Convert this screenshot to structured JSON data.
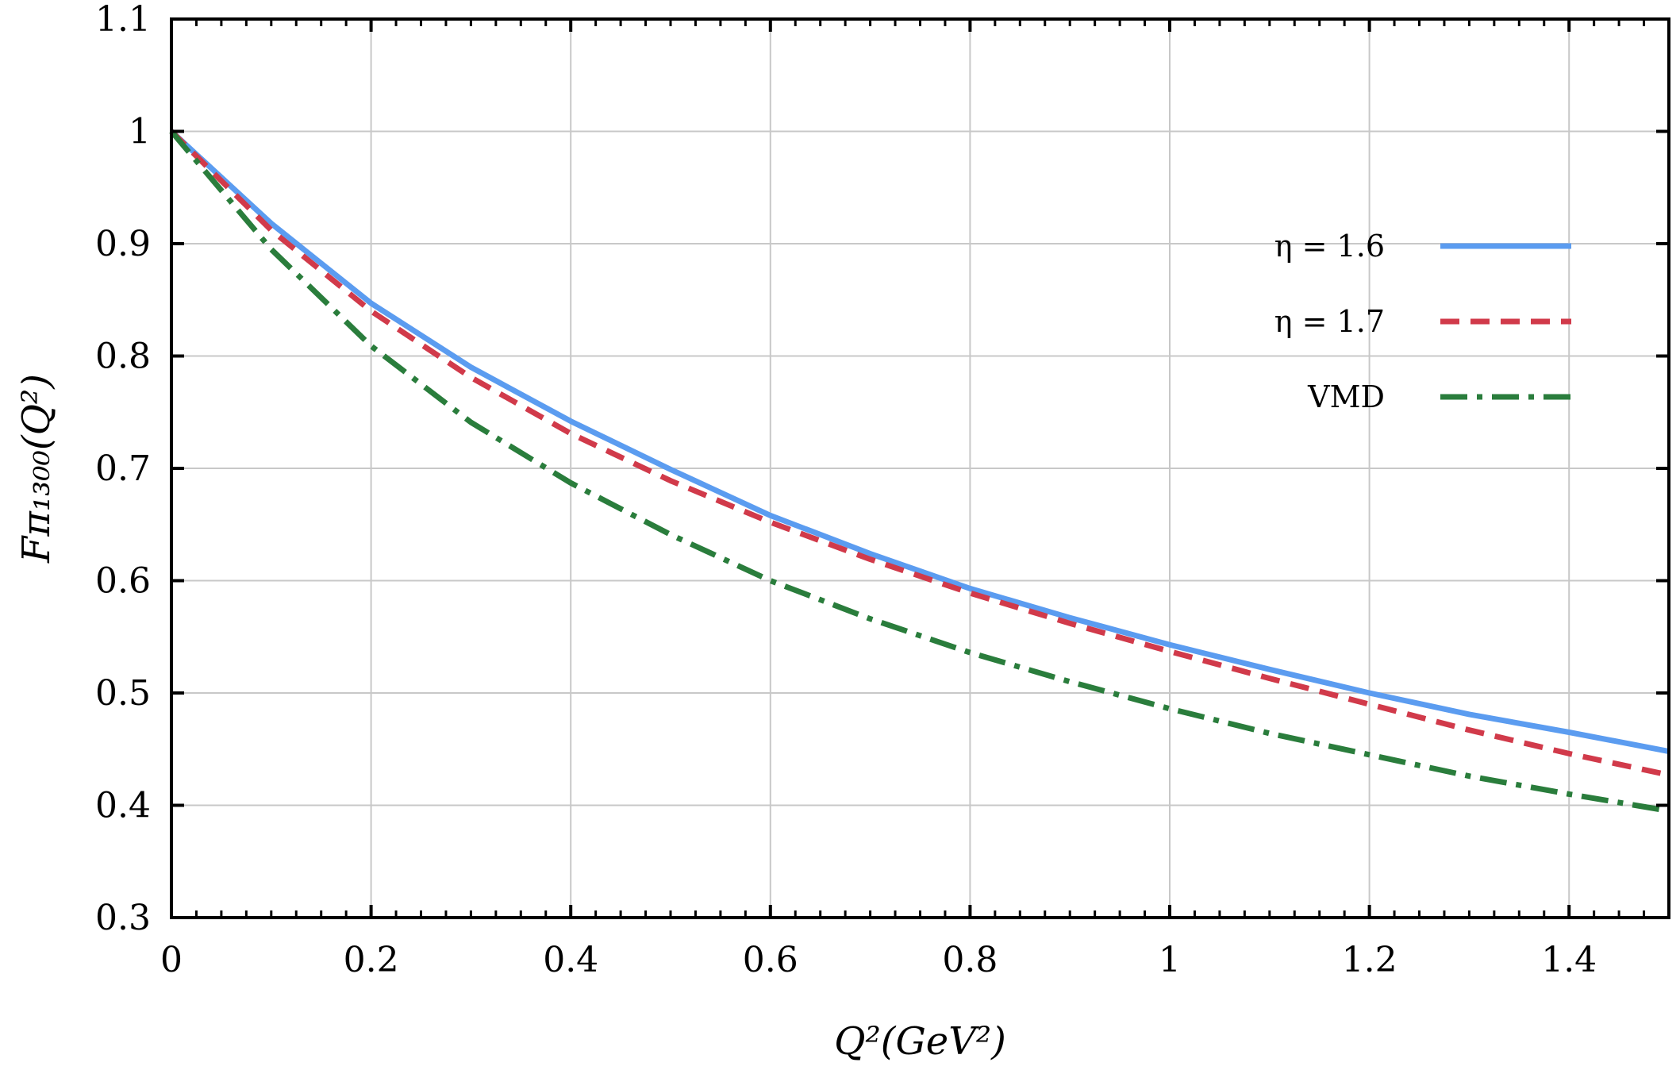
{
  "chart_data": {
    "type": "line",
    "xlabel": "Q²(GeV²)",
    "ylabel": "Fπ₁₃₀₀(Q²)",
    "xlim": [
      0,
      1.5
    ],
    "ylim": [
      0.3,
      1.1
    ],
    "x_ticks": [
      "0",
      "0.2",
      "0.4",
      "0.6",
      "0.8",
      "1",
      "1.2",
      "1.4"
    ],
    "y_ticks": [
      "0.3",
      "0.4",
      "0.5",
      "0.6",
      "0.7",
      "0.8",
      "0.9",
      "1",
      "1.1"
    ],
    "grid": true,
    "legend_position": "upper-right",
    "series": [
      {
        "name": "η = 1.6",
        "color": "#5b9cf0",
        "style": "solid",
        "x": [
          0,
          0.1,
          0.2,
          0.3,
          0.4,
          0.5,
          0.6,
          0.7,
          0.8,
          0.9,
          1.0,
          1.1,
          1.2,
          1.3,
          1.4,
          1.5
        ],
        "y": [
          1.0,
          0.918,
          0.847,
          0.79,
          0.742,
          0.699,
          0.658,
          0.624,
          0.593,
          0.567,
          0.543,
          0.521,
          0.5,
          0.481,
          0.465,
          0.448
        ]
      },
      {
        "name": "η = 1.7",
        "color": "#d13a4a",
        "style": "dashed",
        "x": [
          0,
          0.1,
          0.2,
          0.3,
          0.4,
          0.5,
          0.6,
          0.7,
          0.8,
          0.9,
          1.0,
          1.1,
          1.2,
          1.3,
          1.4,
          1.5
        ],
        "y": [
          1.0,
          0.912,
          0.84,
          0.781,
          0.731,
          0.689,
          0.652,
          0.619,
          0.589,
          0.562,
          0.537,
          0.513,
          0.49,
          0.467,
          0.446,
          0.427
        ]
      },
      {
        "name": "VMD",
        "color": "#2a7d3c",
        "style": "dashdot",
        "x": [
          0,
          0.1,
          0.2,
          0.3,
          0.4,
          0.5,
          0.6,
          0.7,
          0.8,
          0.9,
          1.0,
          1.1,
          1.2,
          1.3,
          1.4,
          1.5
        ],
        "y": [
          1.0,
          0.895,
          0.809,
          0.741,
          0.687,
          0.641,
          0.6,
          0.566,
          0.536,
          0.51,
          0.486,
          0.464,
          0.445,
          0.426,
          0.41,
          0.395
        ]
      }
    ]
  }
}
